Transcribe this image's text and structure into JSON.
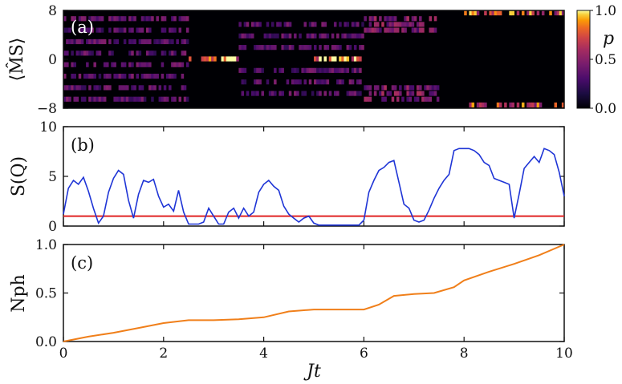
{
  "colors": {
    "blue_line": "#1f35d6",
    "red_line": "#e02424",
    "orange_line": "#f07f1a",
    "axis": "#111111"
  },
  "chart_data": [
    {
      "panel": "(a)",
      "type": "heatmap",
      "ylabel": "⟨M̂S⟩",
      "x_range": [
        0,
        10
      ],
      "y_range": [
        -8,
        8
      ],
      "y_ticks": [
        "8",
        "0",
        "−8"
      ],
      "colorbar": {
        "label": "p",
        "range": [
          0,
          1
        ],
        "ticks": [
          "1.0",
          "0.5",
          "0.0"
        ],
        "colormap": "inferno"
      },
      "rows": 17,
      "cols": 200,
      "rows_values": [
        -8,
        -7,
        -6,
        -5,
        -4,
        -3,
        -2,
        -1,
        0,
        1,
        2,
        3,
        4,
        5,
        6,
        7,
        8
      ],
      "segments": [
        {
          "from": 0.0,
          "to": 2.5,
          "rows": [
            -7,
            -5,
            -3,
            -1,
            1,
            3,
            5,
            7
          ],
          "intensity": 0.35
        },
        {
          "from": 2.5,
          "to": 3.5,
          "rows": [
            0
          ],
          "intensity": 0.85
        },
        {
          "from": 3.5,
          "to": 6.0,
          "rows": [
            -6,
            -4,
            -2,
            2,
            4,
            6
          ],
          "intensity": 0.35
        },
        {
          "from": 5.0,
          "to": 6.0,
          "rows": [
            0
          ],
          "intensity": 0.95
        },
        {
          "from": 6.0,
          "to": 7.5,
          "rows": [
            -7,
            -6,
            -5,
            5,
            6,
            7
          ],
          "intensity": 0.45
        },
        {
          "from": 8.0,
          "to": 10.0,
          "rows": [
            -8,
            8
          ],
          "intensity": 0.7
        }
      ]
    },
    {
      "panel": "(b)",
      "type": "line",
      "ylabel": "S(Q)",
      "xlim": [
        0,
        10
      ],
      "ylim": [
        0,
        10
      ],
      "y_ticks": [
        "10",
        "5",
        "0"
      ],
      "series": [
        {
          "x": [
            0,
            0.1,
            0.2,
            0.3,
            0.4,
            0.5,
            0.6,
            0.7,
            0.8,
            0.9,
            1.0,
            1.1,
            1.2,
            1.3,
            1.4,
            1.5,
            1.6,
            1.7,
            1.8,
            1.9,
            2.0,
            2.1,
            2.2,
            2.3,
            2.4,
            2.5,
            2.6,
            2.7,
            2.8,
            2.9,
            3.0,
            3.1,
            3.2,
            3.3,
            3.4,
            3.5,
            3.6,
            3.7,
            3.8,
            3.9,
            4.0,
            4.1,
            4.2,
            4.3,
            4.4,
            4.5,
            4.6,
            4.7,
            4.8,
            4.9,
            5.0,
            5.1,
            5.2,
            5.3,
            5.4,
            5.5,
            5.6,
            5.7,
            5.8,
            5.9,
            6.0,
            6.1,
            6.2,
            6.3,
            6.4,
            6.5,
            6.6,
            6.7,
            6.8,
            6.9,
            7.0,
            7.1,
            7.2,
            7.3,
            7.4,
            7.5,
            7.6,
            7.7,
            7.8,
            7.9,
            8.0,
            8.1,
            8.2,
            8.3,
            8.4,
            8.5,
            8.6,
            8.7,
            8.8,
            8.9,
            9.0,
            9.1,
            9.2,
            9.3,
            9.4,
            9.5,
            9.6,
            9.7,
            9.8,
            9.9,
            10.0
          ],
          "y": [
            1.2,
            3.8,
            4.6,
            4.2,
            4.9,
            3.5,
            1.8,
            0.3,
            1.0,
            3.4,
            4.8,
            5.6,
            5.2,
            2.6,
            0.8,
            3.2,
            4.6,
            4.4,
            4.7,
            3.0,
            1.9,
            2.2,
            1.5,
            3.6,
            1.4,
            0.2,
            0.2,
            0.2,
            0.4,
            1.8,
            1.0,
            0.2,
            0.2,
            1.4,
            1.8,
            0.8,
            1.8,
            1.0,
            1.4,
            3.4,
            4.2,
            4.6,
            4.0,
            3.6,
            2.0,
            1.2,
            0.8,
            0.4,
            0.8,
            1.0,
            0.3,
            0.1,
            0.1,
            0.1,
            0.1,
            0.1,
            0.1,
            0.1,
            0.1,
            0.1,
            0.6,
            3.4,
            4.6,
            5.6,
            5.9,
            6.4,
            6.6,
            4.4,
            2.2,
            1.8,
            0.6,
            0.4,
            0.6,
            1.6,
            2.8,
            3.8,
            4.6,
            5.2,
            7.6,
            7.8,
            7.8,
            7.8,
            7.6,
            7.2,
            6.4,
            6.1,
            4.8,
            4.6,
            4.4,
            4.2,
            0.8,
            3.2,
            5.8,
            6.4,
            7.0,
            6.4,
            7.8,
            7.6,
            7.2,
            5.4,
            3.0
          ]
        },
        {
          "x": [
            0,
            10
          ],
          "y": [
            1,
            1
          ]
        }
      ]
    },
    {
      "panel": "(c)",
      "type": "line",
      "ylabel": "Nph",
      "xlabel": "Jt",
      "xlim": [
        0,
        10
      ],
      "ylim": [
        0,
        1
      ],
      "x_ticks": [
        "0",
        "2",
        "4",
        "6",
        "8",
        "10"
      ],
      "y_ticks": [
        "1.0",
        "0.5",
        "0.0"
      ],
      "series": [
        {
          "x": [
            0,
            0.5,
            1.0,
            1.5,
            2.0,
            2.5,
            3.0,
            3.5,
            4.0,
            4.5,
            5.0,
            5.5,
            6.0,
            6.3,
            6.6,
            7.0,
            7.4,
            7.8,
            8.0,
            8.5,
            9.0,
            9.5,
            10.0
          ],
          "y": [
            0.0,
            0.05,
            0.09,
            0.14,
            0.19,
            0.22,
            0.22,
            0.23,
            0.25,
            0.31,
            0.33,
            0.33,
            0.33,
            0.38,
            0.47,
            0.49,
            0.5,
            0.56,
            0.63,
            0.72,
            0.8,
            0.89,
            1.0
          ]
        }
      ]
    }
  ]
}
